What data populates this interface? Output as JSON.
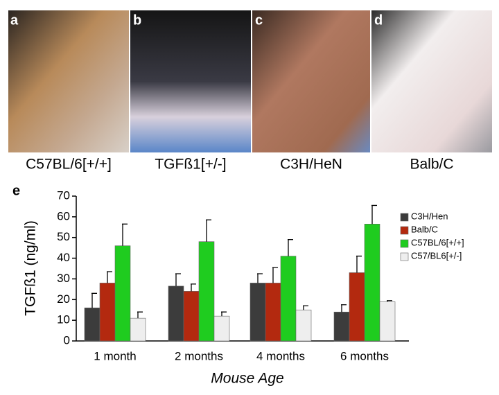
{
  "panels": [
    {
      "letter": "a",
      "caption": "C57BL/6[+/+]"
    },
    {
      "letter": "b",
      "caption": "TGFß1[+/-]"
    },
    {
      "letter": "c",
      "caption": "C3H/HeN"
    },
    {
      "letter": "d",
      "caption": "Balb/C"
    }
  ],
  "chart_data": {
    "type": "bar",
    "panel_letter": "e",
    "x_label": "Mouse Age",
    "y_label": "TGFß1 (ng/ml)",
    "categories": [
      "1 month",
      "2 months",
      "4 months",
      "6 months"
    ],
    "series": [
      {
        "name": "C3H/Hen",
        "color": "#3c3c3c",
        "values": [
          16,
          26.5,
          28,
          14
        ],
        "errors": [
          7,
          6,
          4.5,
          3.5
        ]
      },
      {
        "name": "Balb/C",
        "color": "#b3290f",
        "values": [
          28,
          24,
          28,
          33
        ],
        "errors": [
          5.5,
          3.5,
          7.5,
          8
        ]
      },
      {
        "name": "C57BL/6[+/+]",
        "color": "#1fcc1f",
        "values": [
          46,
          48,
          41,
          56.5
        ],
        "errors": [
          10.5,
          10.5,
          8,
          9
        ]
      },
      {
        "name": "C57/BL6[+/-]",
        "color": "#eeeeee",
        "values": [
          11,
          12,
          15,
          19
        ],
        "errors": [
          3,
          2,
          2,
          0.5
        ]
      }
    ],
    "ylim": [
      0,
      70
    ],
    "yticks": [
      0,
      10,
      20,
      30,
      40,
      50,
      60,
      70
    ],
    "grid": false
  }
}
